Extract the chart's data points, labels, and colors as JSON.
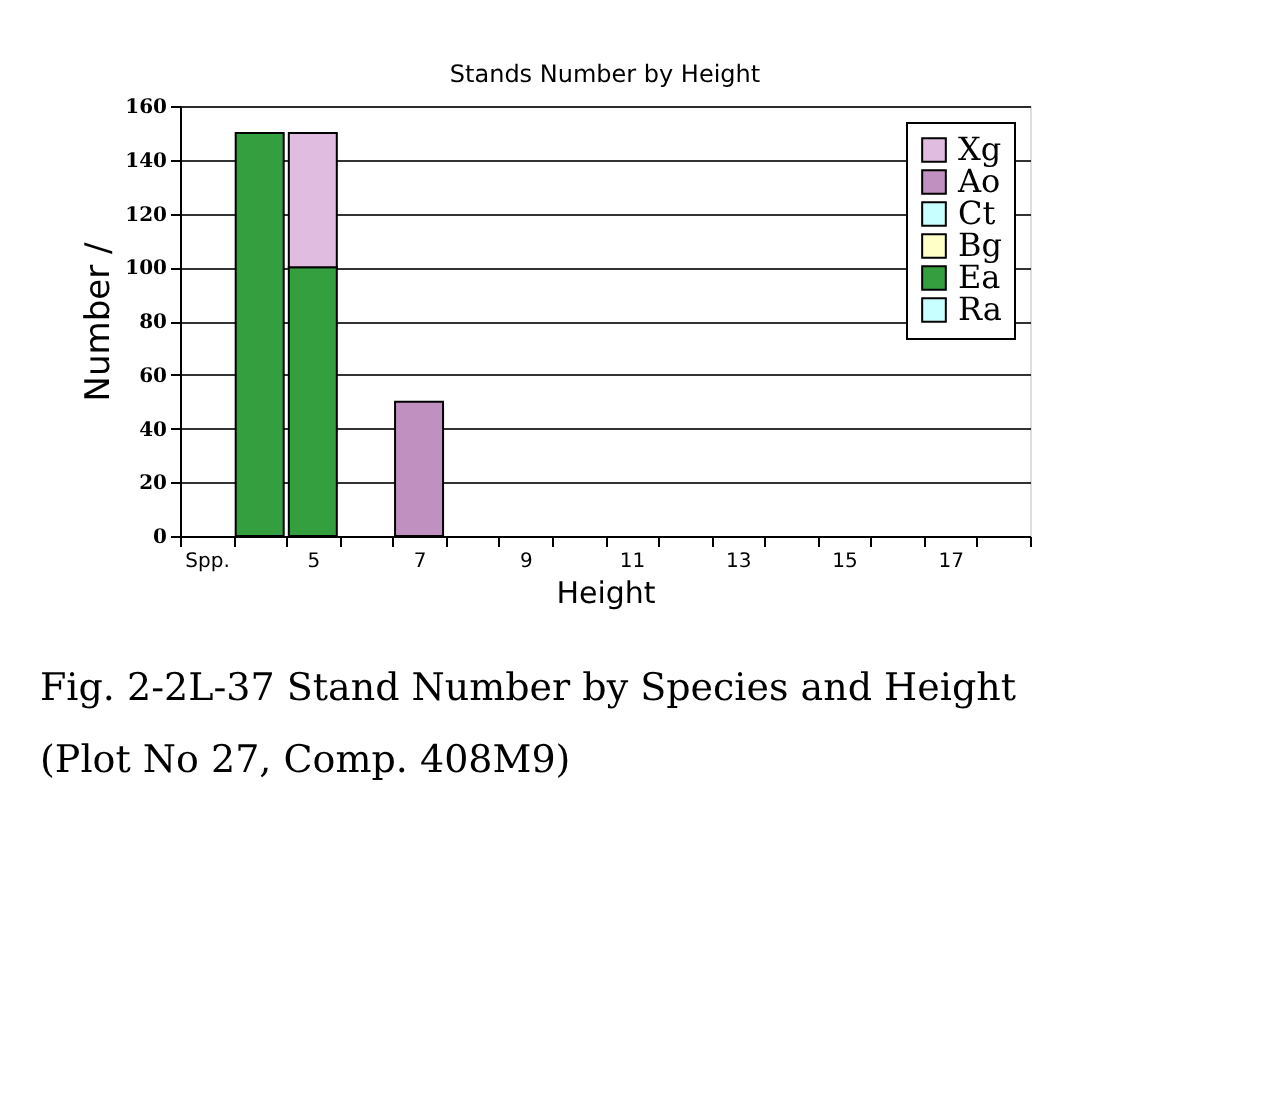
{
  "chart_data": {
    "type": "bar",
    "stacked": true,
    "title": "Stands Number by Height",
    "xlabel": "Height",
    "ylabel": "Number /",
    "categories": [
      "Spp.",
      null,
      "5",
      null,
      "7",
      null,
      "9",
      null,
      "11",
      null,
      "13",
      null,
      "15",
      null,
      "17",
      null
    ],
    "series": [
      {
        "name": "Ra",
        "color": "#c8ffff",
        "values": [
          null,
          null,
          null,
          null,
          null,
          null,
          null,
          null,
          null,
          null,
          null,
          null,
          null,
          null,
          null,
          null
        ]
      },
      {
        "name": "Ea",
        "color": "#339f3f",
        "values": [
          null,
          150,
          100,
          null,
          null,
          null,
          null,
          null,
          null,
          null,
          null,
          null,
          null,
          null,
          null,
          null
        ]
      },
      {
        "name": "Bg",
        "color": "#ffffc8",
        "values": [
          null,
          null,
          null,
          null,
          null,
          null,
          null,
          null,
          null,
          null,
          null,
          null,
          null,
          null,
          null,
          null
        ]
      },
      {
        "name": "Ct",
        "color": "#c8ffff",
        "values": [
          null,
          null,
          null,
          null,
          null,
          null,
          null,
          null,
          null,
          null,
          null,
          null,
          null,
          null,
          null,
          null
        ]
      },
      {
        "name": "Ao",
        "color": "#c090c0",
        "values": [
          null,
          null,
          null,
          null,
          50,
          null,
          null,
          null,
          null,
          null,
          null,
          null,
          null,
          null,
          null,
          null
        ]
      },
      {
        "name": "Xg",
        "color": "#e0bce0",
        "values": [
          null,
          null,
          50,
          null,
          null,
          null,
          null,
          null,
          null,
          null,
          null,
          null,
          null,
          null,
          null,
          null
        ]
      }
    ],
    "ylim": [
      0,
      160
    ],
    "yticks": [
      0,
      20,
      40,
      60,
      80,
      100,
      120,
      140,
      160
    ],
    "grid": "y",
    "legend": "top right",
    "annotations": [
      "Fig. 2-2L-37 Stand Number by Species and Height (Plot No 27, Comp. 408M9)"
    ]
  }
}
